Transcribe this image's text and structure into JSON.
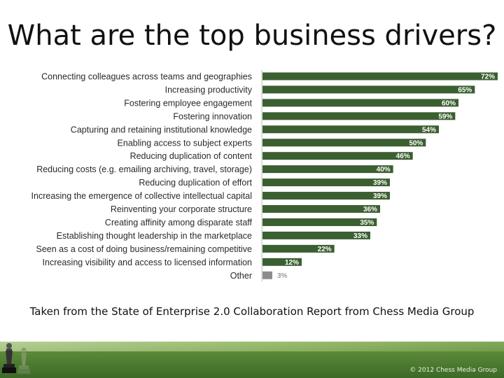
{
  "slide": {
    "title": "What are the top business drivers?",
    "caption": "Taken from the State of Enterprise 2.0 Collaboration Report from Chess Media Group",
    "footer_text": "© 2012 Chess Media Group"
  },
  "colors": {
    "bar": "#3b5f30",
    "other_bar": "#8c8c8c",
    "label": "#2a2a2a",
    "value_label": "#ffffff",
    "other_value_label": "#9a9a9a"
  },
  "chart_data": {
    "type": "bar",
    "orientation": "horizontal",
    "categories": [
      "Connecting colleagues across teams and geographies",
      "Increasing productivity",
      "Fostering employee engagement",
      "Fostering innovation",
      "Capturing and retaining institutional knowledge",
      "Enabling access to subject experts",
      "Reducing duplication of content",
      "Reducing costs (e.g. emailing archiving, travel, storage)",
      "Reducing duplication of effort",
      "Increasing the emergence of collective intellectual capital",
      "Reinventing your corporate structure",
      "Creating affinity among disparate staff",
      "Establishing thought leadership in the marketplace",
      "Seen as a cost of doing business/remaining competitive",
      "Increasing visibility and access to licensed information",
      "Other"
    ],
    "values": [
      72,
      65,
      60,
      59,
      54,
      50,
      46,
      40,
      39,
      39,
      36,
      35,
      33,
      22,
      12,
      3
    ],
    "value_labels": [
      "72%",
      "65%",
      "60%",
      "59%",
      "54%",
      "50%",
      "46%",
      "40%",
      "39%",
      "39%",
      "36%",
      "35%",
      "33%",
      "22%",
      "12%",
      "3%"
    ],
    "unit": "%",
    "xlim": [
      0,
      72
    ],
    "grid": false,
    "legend": "none"
  }
}
